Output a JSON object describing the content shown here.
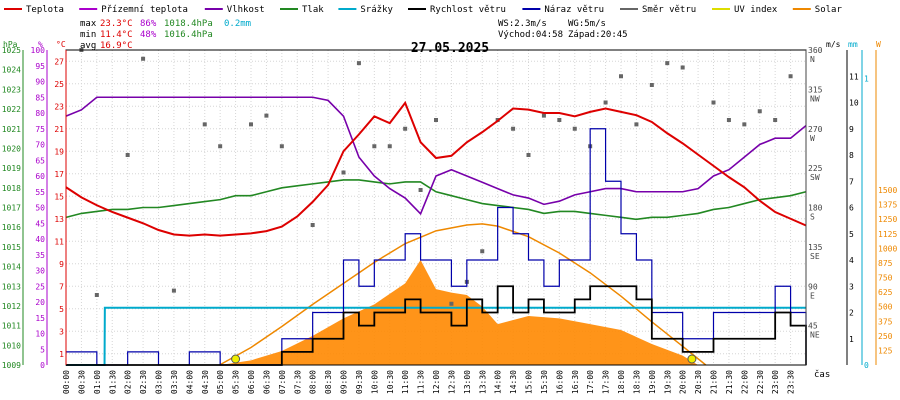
{
  "chart_data": {
    "type": "line",
    "title": "27.05.2025",
    "legend": [
      {
        "label": "Teplota",
        "color": "#dd0000"
      },
      {
        "label": "Přízemní teplota",
        "color": "#aa00cc"
      },
      {
        "label": "Vlhkost",
        "color": "#7700aa"
      },
      {
        "label": "Tlak",
        "color": "#228822"
      },
      {
        "label": "Srážky",
        "color": "#00aacc"
      },
      {
        "label": "Rychlost větru",
        "color": "#000000"
      },
      {
        "label": "Náraz větru",
        "color": "#0000aa"
      },
      {
        "label": "Směr větru",
        "color": "#666666"
      },
      {
        "label": "UV index",
        "color": "#dddd00"
      },
      {
        "label": "Solar",
        "color": "#ee8800"
      }
    ],
    "stats": {
      "max_label": "max",
      "max_temp": "23.3°C",
      "max_hum": "86%",
      "max_press": "1018.4hPa",
      "max_rain": "0.2mm",
      "min_label": "min",
      "min_temp": "11.4°C",
      "min_hum": "48%",
      "min_press": "1016.4hPa",
      "avg_label": "avg",
      "avg_temp": "16.9°C",
      "ws": "WS:2.3m/s",
      "wg": "WG:5m/s",
      "sunrise": "Východ:04:58",
      "sunset": "Západ:20:45"
    },
    "xlabel": "čas",
    "x_ticks": [
      "00:00",
      "00:30",
      "01:00",
      "01:30",
      "02:00",
      "02:30",
      "03:00",
      "03:30",
      "04:00",
      "04:30",
      "05:00",
      "05:30",
      "06:00",
      "06:30",
      "07:00",
      "07:30",
      "08:00",
      "08:30",
      "09:00",
      "09:30",
      "10:00",
      "10:30",
      "11:00",
      "11:30",
      "12:00",
      "12:30",
      "13:00",
      "13:30",
      "14:00",
      "14:30",
      "15:00",
      "15:30",
      "16:00",
      "16:30",
      "17:00",
      "17:30",
      "18:00",
      "18:30",
      "19:00",
      "19:30",
      "20:00",
      "20:30",
      "21:00",
      "21:30",
      "22:00",
      "22:30",
      "23:00",
      "23:30"
    ],
    "axes": {
      "pressure": {
        "unit": "hPa",
        "ticks": [
          "1025",
          "1024",
          "1023",
          "1022",
          "1021",
          "1020",
          "1019",
          "1018",
          "1017",
          "1016",
          "1015",
          "1014",
          "1013",
          "1012",
          "1011",
          "1010",
          "1009"
        ],
        "range": [
          1009,
          1025
        ]
      },
      "humidity": {
        "unit": "%",
        "ticks": [
          "100",
          "95",
          "90",
          "85",
          "80",
          "75",
          "70",
          "65",
          "60",
          "55",
          "50",
          "45",
          "40",
          "35",
          "30",
          "25",
          "20",
          "15",
          "10",
          "5",
          "0"
        ],
        "range": [
          0,
          100
        ]
      },
      "temperature": {
        "unit": "°C",
        "ticks": [
          "27",
          "25",
          "23",
          "21",
          "19",
          "17",
          "15",
          "13",
          "11",
          "9",
          "7",
          "5",
          "3",
          "1"
        ],
        "range": [
          0,
          28
        ]
      },
      "wind_dir": {
        "ticks": [
          "360\nN",
          "315\nNW",
          "270\nW",
          "225\nSW",
          "180\nS",
          "135\nSE",
          "90\nE",
          "45\nNE"
        ],
        "range": [
          0,
          360
        ]
      },
      "wind_speed": {
        "unit": "m/s",
        "ticks": [
          "11",
          "10",
          "9",
          "8",
          "7",
          "6",
          "5",
          "4",
          "3",
          "2",
          "1"
        ],
        "range": [
          0,
          12
        ]
      },
      "rain": {
        "unit": "mm",
        "ticks": [
          "1",
          "0"
        ],
        "range": [
          0,
          1.1
        ]
      },
      "solar": {
        "unit": "W",
        "ticks": [
          "1500",
          "1375",
          "1250",
          "1125",
          "1000",
          "875",
          "750",
          "625",
          "500",
          "375",
          "250",
          "125"
        ],
        "range": [
          0,
          2700
        ]
      }
    },
    "series": {
      "temperature": {
        "x": [
          0,
          0.5,
          1,
          1.5,
          2,
          2.5,
          3,
          3.5,
          4,
          4.5,
          5,
          5.5,
          6,
          6.5,
          7,
          7.5,
          8,
          8.5,
          9,
          9.5,
          10,
          10.5,
          11,
          11.5,
          12,
          12.5,
          13,
          13.5,
          14,
          14.5,
          15,
          15.5,
          16,
          16.5,
          17,
          17.5,
          18,
          18.5,
          19,
          19.5,
          20,
          20.5,
          21,
          21.5,
          22,
          22.5,
          23,
          23.5,
          24
        ],
        "y": [
          15.8,
          14.9,
          14.2,
          13.6,
          13.1,
          12.6,
          12.0,
          11.6,
          11.5,
          11.6,
          11.5,
          11.6,
          11.7,
          11.9,
          12.3,
          13.2,
          14.5,
          16.0,
          19.0,
          20.5,
          22.1,
          21.5,
          23.3,
          19.8,
          18.4,
          18.6,
          19.8,
          20.7,
          21.7,
          22.8,
          22.7,
          22.4,
          22.4,
          22.1,
          22.5,
          22.8,
          22.5,
          22.2,
          21.6,
          20.6,
          19.7,
          18.7,
          17.7,
          16.7,
          15.8,
          14.6,
          13.6,
          13.0,
          12.4
        ]
      },
      "humidity": {
        "x": [
          0,
          0.5,
          1,
          1.5,
          2,
          2.5,
          3,
          3.5,
          4,
          4.5,
          5,
          5.5,
          6,
          6.5,
          7,
          7.5,
          8,
          8.5,
          9,
          9.5,
          10,
          10.5,
          11,
          11.5,
          12,
          12.5,
          13,
          13.5,
          14,
          14.5,
          15,
          15.5,
          16,
          16.5,
          17,
          17.5,
          18,
          18.5,
          19,
          19.5,
          20,
          20.5,
          21,
          21.5,
          22,
          22.5,
          23,
          23.5,
          24
        ],
        "y": [
          79,
          81,
          85,
          85,
          85,
          85,
          85,
          85,
          85,
          85,
          85,
          85,
          85,
          85,
          85,
          85,
          85,
          84,
          79,
          66,
          60,
          56,
          53,
          48,
          60,
          62,
          60,
          58,
          56,
          54,
          53,
          51,
          52,
          54,
          55,
          56,
          56,
          55,
          55,
          55,
          55,
          56,
          60,
          62,
          66,
          70,
          72,
          72,
          76
        ]
      },
      "pressure": {
        "x": [
          0,
          0.5,
          1,
          1.5,
          2,
          2.5,
          3,
          3.5,
          4,
          4.5,
          5,
          5.5,
          6,
          6.5,
          7,
          7.5,
          8,
          8.5,
          9,
          9.5,
          10,
          10.5,
          11,
          11.5,
          12,
          12.5,
          13,
          13.5,
          14,
          14.5,
          15,
          15.5,
          16,
          16.5,
          17,
          17.5,
          18,
          18.5,
          19,
          19.5,
          20,
          20.5,
          21,
          21.5,
          22,
          22.5,
          23,
          23.5,
          24
        ],
        "y": [
          1016.5,
          1016.7,
          1016.8,
          1016.9,
          1016.9,
          1017.0,
          1017.0,
          1017.1,
          1017.2,
          1017.3,
          1017.4,
          1017.6,
          1017.6,
          1017.8,
          1018.0,
          1018.1,
          1018.2,
          1018.3,
          1018.4,
          1018.4,
          1018.3,
          1018.2,
          1018.3,
          1018.3,
          1017.8,
          1017.6,
          1017.4,
          1017.2,
          1017.1,
          1017.0,
          1016.9,
          1016.7,
          1016.8,
          1016.8,
          1016.7,
          1016.6,
          1016.5,
          1016.4,
          1016.5,
          1016.5,
          1016.6,
          1016.7,
          1016.9,
          1017.0,
          1017.2,
          1017.4,
          1017.5,
          1017.6,
          1017.8
        ]
      },
      "rain": {
        "x": [
          0,
          1.25,
          1.26,
          24
        ],
        "y": [
          0,
          0,
          0.2,
          0.2
        ]
      },
      "wind_speed": {
        "x": [
          0,
          1,
          2,
          3,
          4,
          5,
          6,
          6.5,
          7,
          7.5,
          8,
          8.5,
          9,
          9.5,
          10,
          10.5,
          11,
          11.5,
          12,
          12.5,
          13,
          13.5,
          14,
          14.5,
          15,
          15.5,
          16,
          16.5,
          17,
          17.5,
          18,
          18.5,
          19,
          19.5,
          20,
          20.5,
          21,
          21.5,
          22,
          22.5,
          23,
          23.5,
          24
        ],
        "y": [
          0,
          0,
          0,
          0,
          0,
          0,
          0,
          0,
          0.5,
          0.5,
          1,
          1,
          2,
          1.5,
          2,
          2,
          2.5,
          2,
          2,
          1.5,
          2.5,
          2,
          3,
          2,
          2.5,
          2,
          2,
          2.5,
          3,
          3,
          3,
          2.5,
          1,
          1,
          0.5,
          0.5,
          1,
          1,
          1,
          1,
          2,
          1.5,
          0
        ]
      },
      "wind_gust": {
        "x": [
          0,
          1,
          2,
          3,
          4,
          5,
          6,
          6.5,
          7,
          7.5,
          8,
          8.5,
          9,
          9.5,
          10,
          10.5,
          11,
          11.5,
          12,
          12.5,
          13,
          13.5,
          14,
          14.5,
          15,
          15.5,
          16,
          16.5,
          17,
          17.5,
          18,
          18.5,
          19,
          19.5,
          20,
          20.5,
          21,
          21.5,
          22,
          22.5,
          23,
          23.5,
          24
        ],
        "y": [
          0.5,
          0,
          0.5,
          0,
          0.5,
          0,
          0,
          0,
          1,
          1,
          2,
          2,
          4,
          3,
          4,
          4,
          5,
          4,
          4,
          3,
          4,
          4,
          6,
          5,
          4,
          3,
          4,
          4,
          9,
          7,
          5,
          4,
          2,
          2,
          1,
          1,
          2,
          2,
          2,
          2,
          3,
          2,
          0
        ]
      },
      "solar": {
        "x": [
          5,
          6,
          7,
          8,
          9,
          10,
          11,
          11.5,
          12,
          12.5,
          13,
          13.5,
          14,
          15,
          16,
          17,
          18,
          19,
          20,
          20.5
        ],
        "y": [
          0,
          40,
          120,
          250,
          400,
          520,
          700,
          900,
          650,
          620,
          600,
          500,
          350,
          420,
          400,
          350,
          300,
          180,
          80,
          0
        ]
      },
      "solar_max": {
        "x": [
          4.98,
          6,
          7,
          8,
          9,
          10,
          11,
          12,
          13,
          13.5,
          14,
          15,
          16,
          17,
          18,
          19,
          20,
          20.75
        ],
        "y": [
          0,
          150,
          330,
          520,
          700,
          880,
          1040,
          1150,
          1200,
          1210,
          1190,
          1100,
          960,
          790,
          590,
          370,
          160,
          0
        ]
      },
      "wind_direction": {
        "x": [
          0.5,
          1,
          2,
          2.5,
          3.5,
          4.5,
          5,
          6,
          6.5,
          7,
          8,
          9,
          9.5,
          10,
          10.5,
          11,
          11.5,
          12,
          12.5,
          13,
          13.5,
          14,
          14.5,
          15,
          15.5,
          16,
          16.5,
          17,
          17.5,
          18,
          18.5,
          19,
          19.5,
          20,
          21,
          21.5,
          22,
          22.5,
          23,
          23.5
        ],
        "y": [
          360,
          80,
          240,
          350,
          85,
          275,
          250,
          275,
          285,
          250,
          160,
          220,
          345,
          250,
          250,
          270,
          200,
          280,
          70,
          95,
          130,
          280,
          270,
          240,
          285,
          280,
          270,
          250,
          300,
          330,
          275,
          320,
          345,
          340,
          300,
          280,
          275,
          290,
          280,
          330
        ]
      },
      "uv_index": {
        "x": [
          5.5,
          20.3
        ],
        "y": [
          0,
          0
        ]
      }
    }
  }
}
